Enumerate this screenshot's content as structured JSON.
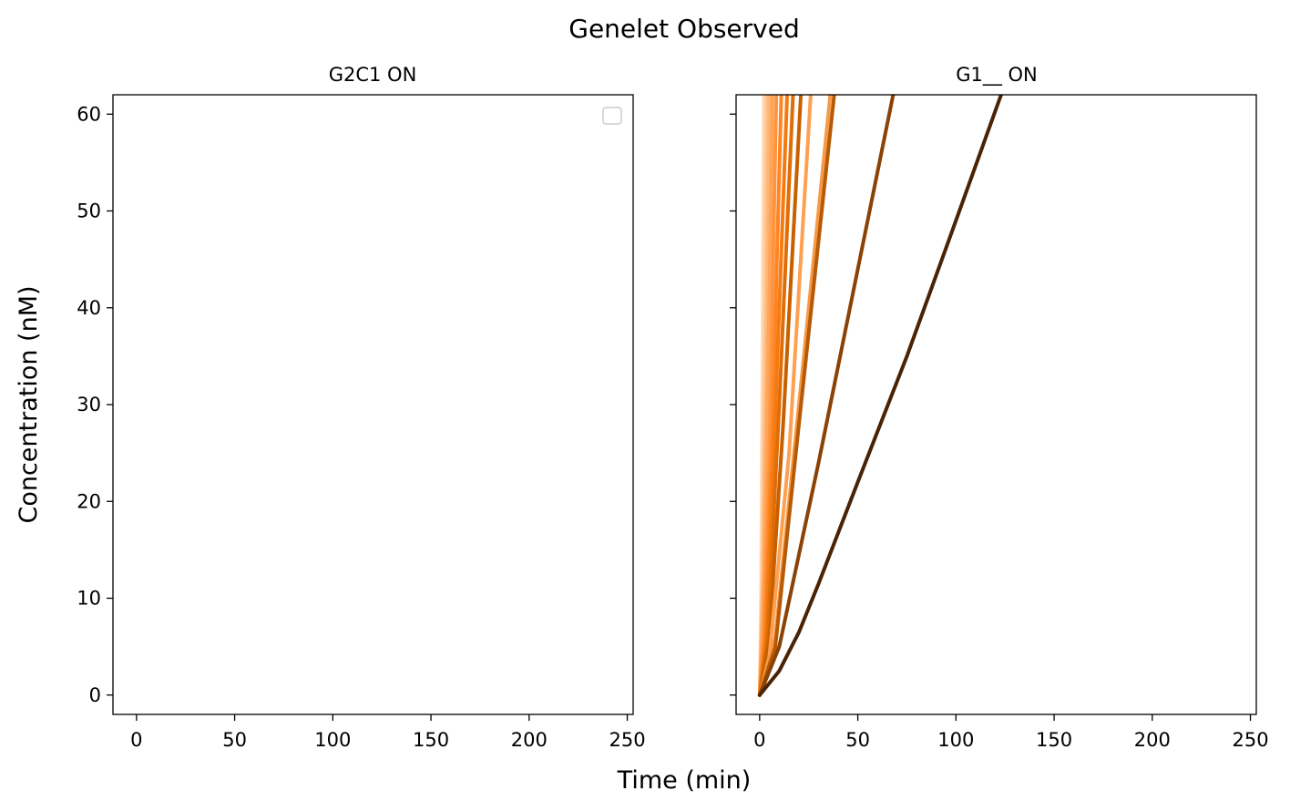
{
  "figure": {
    "title": "Genelet Observed",
    "xlabel": "Time (min)",
    "ylabel": "Concentration (nM)"
  },
  "chart_data": [
    {
      "type": "line",
      "title": "G2C1 ON",
      "xlim": [
        -12,
        253
      ],
      "ylim": [
        -2,
        62
      ],
      "xticks": [
        0,
        50,
        100,
        150,
        200,
        250
      ],
      "yticks": [
        0,
        10,
        20,
        30,
        40,
        50,
        60
      ],
      "legend": {
        "placement": "upper-right",
        "entries": []
      },
      "series": []
    },
    {
      "type": "line",
      "title": "G1__ ON",
      "xlim": [
        -12,
        253
      ],
      "ylim": [
        -2,
        62
      ],
      "xticks": [
        0,
        50,
        100,
        150,
        200,
        250
      ],
      "yticks": [
        0,
        10,
        20,
        30,
        40,
        50,
        60
      ],
      "series": [
        {
          "color": "#ffe0c2",
          "points": [
            [
              0,
              0
            ],
            [
              0.5,
              7
            ],
            [
              1,
              20
            ],
            [
              1.5,
              40
            ],
            [
              2,
              62
            ]
          ]
        },
        {
          "color": "#ffd2a8",
          "points": [
            [
              0,
              0
            ],
            [
              1,
              10
            ],
            [
              2,
              32
            ],
            [
              2.8,
              62
            ]
          ]
        },
        {
          "color": "#ffc48c",
          "points": [
            [
              0,
              0
            ],
            [
              1.5,
              12
            ],
            [
              3,
              38
            ],
            [
              3.8,
              62
            ]
          ]
        },
        {
          "color": "#ffb472",
          "points": [
            [
              0,
              0
            ],
            [
              2,
              13
            ],
            [
              4,
              40
            ],
            [
              5,
              62
            ]
          ]
        },
        {
          "color": "#ffa458",
          "points": [
            [
              0,
              0
            ],
            [
              2,
              9
            ],
            [
              4,
              28
            ],
            [
              6.5,
              62
            ]
          ]
        },
        {
          "color": "#ff943e",
          "points": [
            [
              0,
              0
            ],
            [
              2,
              6
            ],
            [
              5,
              25
            ],
            [
              8.5,
              62
            ]
          ]
        },
        {
          "color": "#ff8524",
          "points": [
            [
              0,
              0
            ],
            [
              3,
              7
            ],
            [
              7,
              31
            ],
            [
              11,
              62
            ]
          ]
        },
        {
          "color": "#f57a0f",
          "points": [
            [
              0,
              0
            ],
            [
              3,
              5
            ],
            [
              8,
              29
            ],
            [
              14,
              62
            ]
          ]
        },
        {
          "color": "#e06d05",
          "points": [
            [
              0,
              0
            ],
            [
              4,
              6
            ],
            [
              10,
              30
            ],
            [
              17,
              62
            ]
          ]
        },
        {
          "color": "#c86000",
          "points": [
            [
              0,
              0
            ],
            [
              5,
              6
            ],
            [
              12,
              28
            ],
            [
              21,
              62
            ]
          ]
        },
        {
          "color": "#ffa050",
          "points": [
            [
              0,
              0
            ],
            [
              5,
              4
            ],
            [
              15,
              25
            ],
            [
              26,
              62
            ]
          ]
        },
        {
          "color": "#f59a48",
          "points": [
            [
              0,
              0
            ],
            [
              8,
              6
            ],
            [
              20,
              30
            ],
            [
              36,
              62
            ]
          ]
        },
        {
          "color": "#b85a05",
          "points": [
            [
              0,
              0
            ],
            [
              8,
              5
            ],
            [
              20,
              28
            ],
            [
              38,
              62
            ]
          ]
        },
        {
          "color": "#8a4205",
          "points": [
            [
              0,
              0
            ],
            [
              10,
              5
            ],
            [
              30,
              24
            ],
            [
              50,
              44
            ],
            [
              68,
              62
            ]
          ]
        },
        {
          "color": "#4a2305",
          "points": [
            [
              0,
              0
            ],
            [
              10,
              2.5
            ],
            [
              20,
              6.5
            ],
            [
              30,
              11.5
            ],
            [
              50,
              22
            ],
            [
              75,
              35
            ],
            [
              100,
              49
            ],
            [
              123,
              62
            ]
          ]
        }
      ]
    }
  ]
}
